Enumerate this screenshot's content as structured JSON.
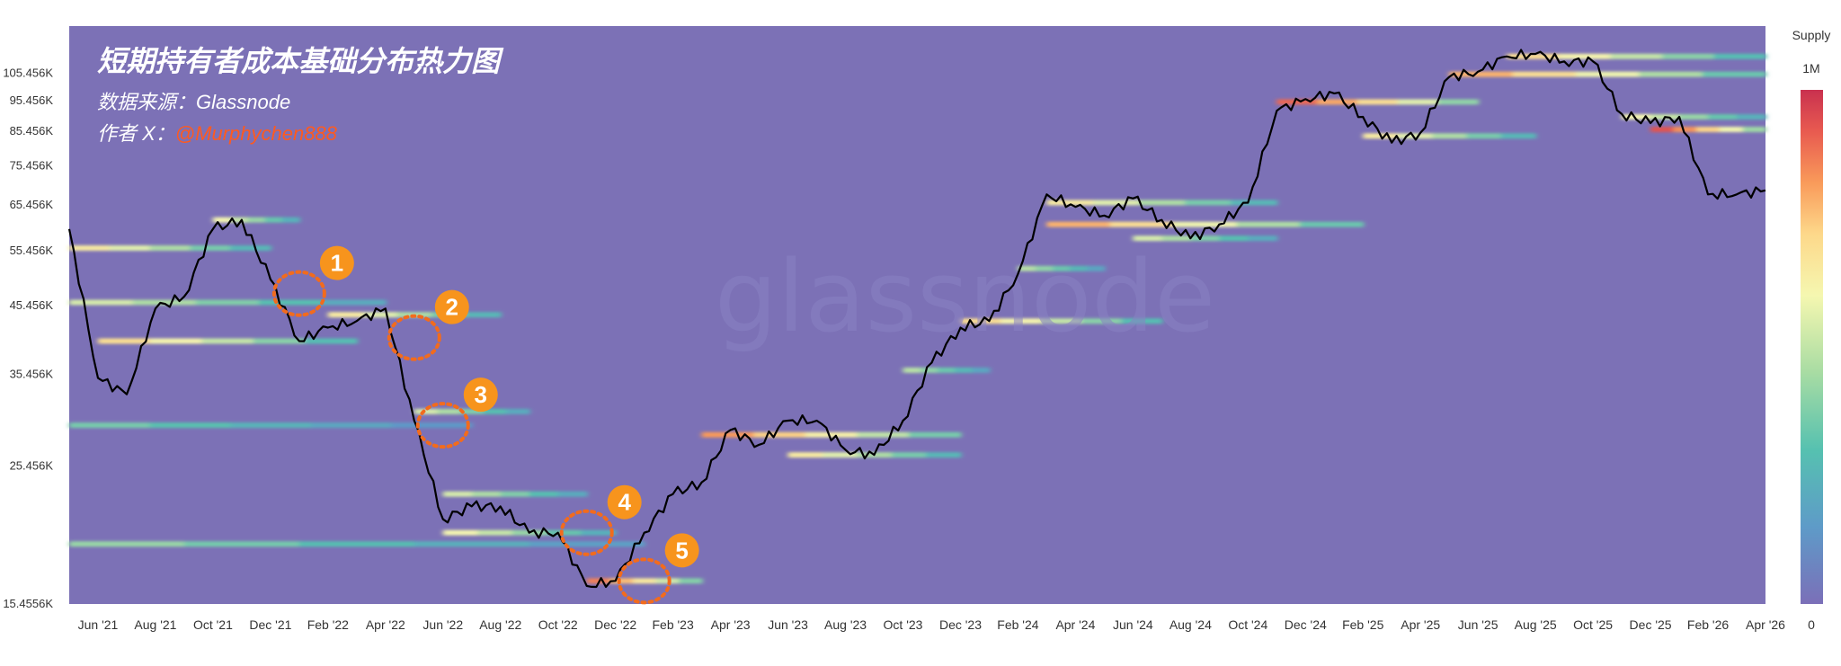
{
  "chart_data": {
    "type": "heatmap",
    "title": "短期持有者成本基础分布热力图",
    "source_label": "数据来源：Glassnode",
    "author_prefix": "作者 X：",
    "author_handle": "@Murphychen888",
    "watermark": "glassnode",
    "y_scale": "log",
    "y_ticks": [
      "105.456K",
      "95.456K",
      "85.456K",
      "75.456K",
      "65.456K",
      "55.456K",
      "45.456K",
      "35.456K",
      "25.456K",
      "15.4556K"
    ],
    "y_tick_values": [
      105456,
      95456,
      85456,
      75456,
      65456,
      55456,
      45456,
      35456,
      25456,
      15455.6
    ],
    "ylim": [
      15455.6,
      125000
    ],
    "x_ticks": [
      "Jun '21",
      "Aug '21",
      "Oct '21",
      "Dec '21",
      "Feb '22",
      "Apr '22",
      "Jun '22",
      "Aug '22",
      "Oct '22",
      "Dec '22",
      "Feb '23",
      "Apr '23",
      "Jun '23",
      "Aug '23",
      "Oct '23",
      "Dec '23",
      "Feb '24",
      "Apr '24",
      "Jun '24",
      "Aug '24",
      "Oct '24",
      "Dec '24",
      "Feb '25",
      "Apr '25",
      "Jun '25",
      "Aug '25",
      "Oct '25",
      "Dec '25",
      "Feb '26",
      "Apr '26"
    ],
    "x_tick_months": [
      "2021-06",
      "2021-08",
      "2021-10",
      "2021-12",
      "2022-02",
      "2022-04",
      "2022-06",
      "2022-08",
      "2022-10",
      "2022-12",
      "2023-02",
      "2023-04",
      "2023-06",
      "2023-08",
      "2023-10",
      "2023-12",
      "2024-02",
      "2024-04",
      "2024-06",
      "2024-08",
      "2024-10",
      "2024-12",
      "2025-02",
      "2025-04",
      "2025-06",
      "2025-08",
      "2025-10",
      "2025-12",
      "2026-02",
      "2026-04"
    ],
    "xlim": [
      "2021-05",
      "2026-04"
    ],
    "colorbar": {
      "title": "Supply",
      "max_label": "1M",
      "min_label": "0",
      "colors": [
        "#7b6fb8",
        "#5e9bc8",
        "#56c1b0",
        "#a8dca3",
        "#f5f7b0",
        "#fdd88a",
        "#f99a5a",
        "#e85a50",
        "#c9314f"
      ]
    },
    "background_color": "#7c71b6",
    "price_series": {
      "name": "BTC price",
      "x": [
        "2021-05",
        "2021-06",
        "2021-07",
        "2021-08",
        "2021-09",
        "2021-10",
        "2021-11",
        "2021-12",
        "2022-01",
        "2022-02",
        "2022-03",
        "2022-04",
        "2022-05",
        "2022-06",
        "2022-07",
        "2022-08",
        "2022-09",
        "2022-10",
        "2022-11",
        "2022-12",
        "2023-01",
        "2023-02",
        "2023-03",
        "2023-04",
        "2023-05",
        "2023-06",
        "2023-07",
        "2023-08",
        "2023-09",
        "2023-10",
        "2023-11",
        "2023-12",
        "2024-01",
        "2024-02",
        "2024-03",
        "2024-04",
        "2024-05",
        "2024-06",
        "2024-07",
        "2024-08",
        "2024-09",
        "2024-10",
        "2024-11",
        "2024-12",
        "2025-01",
        "2025-02",
        "2025-03",
        "2025-04",
        "2025-05",
        "2025-06",
        "2025-07",
        "2025-08",
        "2025-09",
        "2025-10",
        "2025-11",
        "2025-12",
        "2026-01",
        "2026-02",
        "2026-03",
        "2026-04"
      ],
      "y": [
        60000,
        35000,
        33000,
        45000,
        47000,
        60000,
        62000,
        50000,
        40000,
        42000,
        43000,
        45000,
        30000,
        21000,
        22000,
        22000,
        20000,
        20000,
        16500,
        16800,
        20000,
        23000,
        24000,
        29000,
        27500,
        30000,
        30000,
        27000,
        26500,
        30000,
        37000,
        42000,
        43000,
        51000,
        68000,
        65000,
        63000,
        67000,
        62000,
        58000,
        61000,
        66000,
        92000,
        96000,
        98000,
        90000,
        82000,
        85000,
        104000,
        106000,
        112000,
        113000,
        110000,
        110000,
        91000,
        88000,
        90000,
        68000,
        68000,
        69000
      ]
    },
    "cost_basis_bands": [
      {
        "y": 56000,
        "start": "2021-05",
        "end": "2021-12",
        "intensity": 0.55
      },
      {
        "y": 46000,
        "start": "2021-05",
        "end": "2022-04",
        "intensity": 0.45
      },
      {
        "y": 40000,
        "start": "2021-06",
        "end": "2022-03",
        "intensity": 0.6
      },
      {
        "y": 62000,
        "start": "2021-10",
        "end": "2022-01",
        "intensity": 0.5
      },
      {
        "y": 44000,
        "start": "2022-02",
        "end": "2022-08",
        "intensity": 0.55
      },
      {
        "y": 31000,
        "start": "2022-05",
        "end": "2022-09",
        "intensity": 0.45
      },
      {
        "y": 29500,
        "start": "2021-05",
        "end": "2022-07",
        "intensity": 0.3
      },
      {
        "y": 23000,
        "start": "2022-06",
        "end": "2022-11",
        "intensity": 0.45
      },
      {
        "y": 20000,
        "start": "2022-06",
        "end": "2022-12",
        "intensity": 0.5
      },
      {
        "y": 19200,
        "start": "2021-05",
        "end": "2023-01",
        "intensity": 0.35
      },
      {
        "y": 16800,
        "start": "2022-11",
        "end": "2023-03",
        "intensity": 0.8
      },
      {
        "y": 28500,
        "start": "2023-03",
        "end": "2023-12",
        "intensity": 0.75
      },
      {
        "y": 26500,
        "start": "2023-06",
        "end": "2023-12",
        "intensity": 0.55
      },
      {
        "y": 36000,
        "start": "2023-10",
        "end": "2024-01",
        "intensity": 0.4
      },
      {
        "y": 43000,
        "start": "2023-12",
        "end": "2024-07",
        "intensity": 0.6
      },
      {
        "y": 52000,
        "start": "2024-02",
        "end": "2024-05",
        "intensity": 0.4
      },
      {
        "y": 61000,
        "start": "2024-03",
        "end": "2025-02",
        "intensity": 0.7
      },
      {
        "y": 66000,
        "start": "2024-03",
        "end": "2024-11",
        "intensity": 0.55
      },
      {
        "y": 58000,
        "start": "2024-06",
        "end": "2024-11",
        "intensity": 0.45
      },
      {
        "y": 95000,
        "start": "2024-11",
        "end": "2025-06",
        "intensity": 0.85
      },
      {
        "y": 84000,
        "start": "2025-02",
        "end": "2025-08",
        "intensity": 0.55
      },
      {
        "y": 105000,
        "start": "2025-05",
        "end": "2026-04",
        "intensity": 0.7
      },
      {
        "y": 112000,
        "start": "2025-07",
        "end": "2026-04",
        "intensity": 0.6
      },
      {
        "y": 90000,
        "start": "2025-11",
        "end": "2026-04",
        "intensity": 0.5
      },
      {
        "y": 86000,
        "start": "2025-12",
        "end": "2026-04",
        "intensity": 0.9
      }
    ],
    "annotations": [
      {
        "label": "1",
        "date": "2022-01",
        "y": 47500
      },
      {
        "label": "2",
        "date": "2022-05",
        "y": 40500
      },
      {
        "label": "3",
        "date": "2022-06",
        "y": 29500
      },
      {
        "label": "4",
        "date": "2022-11",
        "y": 20000
      },
      {
        "label": "5",
        "date": "2023-01",
        "y": 16800
      }
    ],
    "annotation_color": "#f7941d"
  }
}
